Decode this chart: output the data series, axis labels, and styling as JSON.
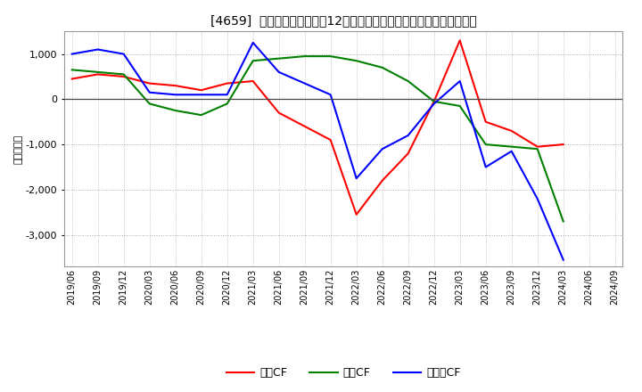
{
  "title": "[4659]  キャッシュフローの12か月移動合計の対前年同期増減額の推移",
  "ylabel": "（百万円）",
  "background_color": "#ffffff",
  "plot_bg_color": "#ffffff",
  "grid_color": "#aaaaaa",
  "dates": [
    "2019/06",
    "2019/09",
    "2019/12",
    "2020/03",
    "2020/06",
    "2020/09",
    "2020/12",
    "2021/03",
    "2021/06",
    "2021/09",
    "2021/12",
    "2022/03",
    "2022/06",
    "2022/09",
    "2022/12",
    "2023/03",
    "2023/06",
    "2023/09",
    "2023/12",
    "2024/03",
    "2024/06",
    "2024/09"
  ],
  "eigyo_cf": [
    450,
    550,
    500,
    350,
    300,
    200,
    350,
    400,
    -300,
    -600,
    -900,
    -2550,
    -1800,
    -1200,
    -50,
    1300,
    -500,
    -700,
    -1050,
    -1000,
    null,
    null
  ],
  "toshi_cf": [
    650,
    600,
    550,
    -100,
    -250,
    -350,
    -100,
    850,
    900,
    950,
    950,
    850,
    700,
    400,
    -50,
    -150,
    -1000,
    -1050,
    -1100,
    -2700,
    null,
    null
  ],
  "free_cf": [
    1000,
    1100,
    1000,
    150,
    100,
    100,
    100,
    1250,
    600,
    350,
    100,
    -1750,
    -1100,
    -800,
    -100,
    400,
    -1500,
    -1150,
    -2200,
    -3550,
    null,
    null
  ],
  "eigyo_color": "#ff0000",
  "toshi_color": "#008000",
  "free_color": "#0000ff",
  "ylim": [
    -3700,
    1500
  ],
  "yticks": [
    -3000,
    -2000,
    -1000,
    0,
    1000
  ],
  "legend_labels": [
    "営業CF",
    "投資CF",
    "フリーCF"
  ]
}
